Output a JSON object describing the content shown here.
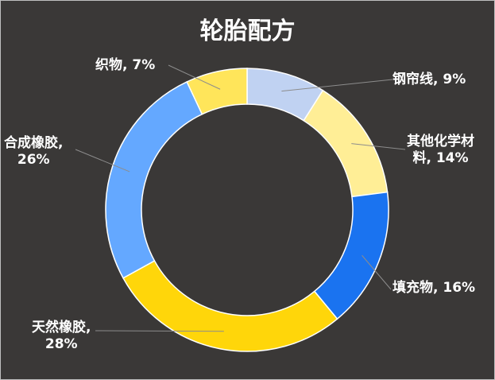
{
  "chart_data": {
    "type": "pie",
    "title": "轮胎配方",
    "legend": "none",
    "slices": [
      {
        "name": "钢帘线",
        "value": 9,
        "label_lines": [
          "钢帘线, 9%"
        ],
        "color": "#c0d2f2"
      },
      {
        "name": "其他化学材料",
        "value": 14,
        "label_lines": [
          "其他化学材",
          "料, 14%"
        ],
        "color": "#ffee96"
      },
      {
        "name": "填充物",
        "value": 16,
        "label_lines": [
          "填充物, 16%"
        ],
        "color": "#1a73f0"
      },
      {
        "name": "天然橡胶",
        "value": 28,
        "label_lines": [
          "天然橡胶,",
          "28%"
        ],
        "color": "#ffd60a"
      },
      {
        "name": "合成橡胶",
        "value": 26,
        "label_lines": [
          "合成橡胶,",
          "26%"
        ],
        "color": "#64a8ff"
      },
      {
        "name": "织物",
        "value": 7,
        "label_lines": [
          "织物, 7%"
        ],
        "color": "#ffe55a"
      }
    ]
  }
}
